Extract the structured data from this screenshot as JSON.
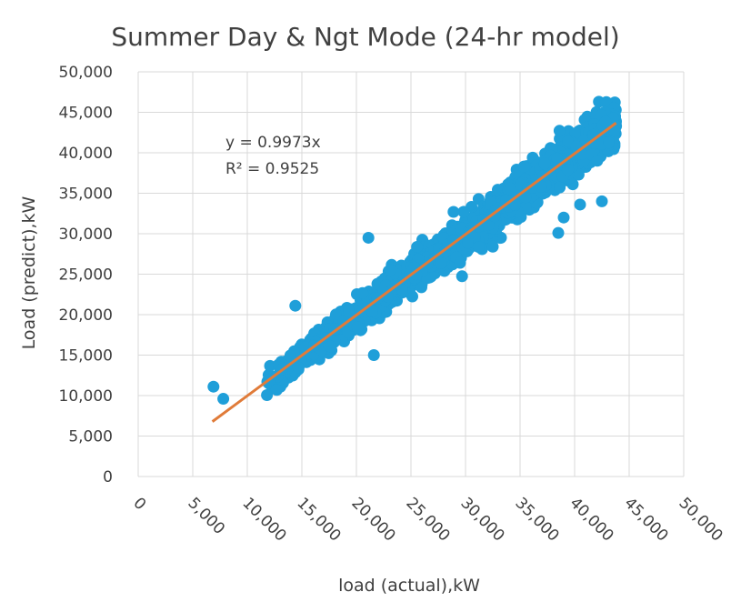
{
  "chart_data": {
    "type": "scatter",
    "title": "Summer Day & Ngt Mode (24-hr model)",
    "xlabel": "load (actual),kW",
    "ylabel": "Load (predict),kW",
    "xlim": [
      0,
      50000
    ],
    "ylim": [
      0,
      50000
    ],
    "x_ticks": [
      "0",
      "5,000",
      "10,000",
      "15,000",
      "20,000",
      "25,000",
      "30,000",
      "35,000",
      "40,000",
      "45,000",
      "50,000"
    ],
    "y_ticks": [
      "0",
      "5,000",
      "10,000",
      "15,000",
      "20,000",
      "25,000",
      "30,000",
      "35,000",
      "40,000",
      "45,000",
      "50,000"
    ],
    "grid": true,
    "legend": "none",
    "trendline": {
      "slope": 0.9973,
      "x_range": [
        6800,
        43800
      ]
    },
    "annotations": {
      "equation": "y = 0.9973x",
      "r_squared": "R² = 0.9525"
    },
    "colors": {
      "points": "#1f9fd9",
      "trendline": "#e07b39",
      "grid": "#d9d9d9",
      "text": "#404040"
    },
    "outliers": [
      {
        "x": 6900,
        "y": 11100
      },
      {
        "x": 7800,
        "y": 9600
      },
      {
        "x": 12700,
        "y": 10700
      },
      {
        "x": 14400,
        "y": 21100
      },
      {
        "x": 21100,
        "y": 29500
      },
      {
        "x": 21600,
        "y": 15000
      },
      {
        "x": 28900,
        "y": 32700
      },
      {
        "x": 29500,
        "y": 26400
      },
      {
        "x": 32500,
        "y": 28400
      },
      {
        "x": 35500,
        "y": 34500
      },
      {
        "x": 38500,
        "y": 30100
      },
      {
        "x": 39000,
        "y": 32000
      },
      {
        "x": 40500,
        "y": 33600
      },
      {
        "x": 42500,
        "y": 34000
      }
    ],
    "cluster": {
      "x_range": [
        11800,
        43800
      ],
      "spread": 3000,
      "count": 2200
    }
  }
}
